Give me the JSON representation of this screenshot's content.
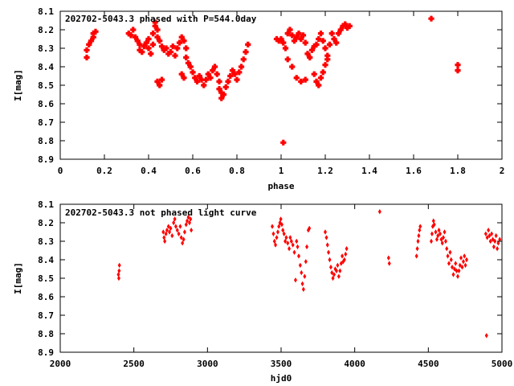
{
  "colors": {
    "points": "#ff0000",
    "axes": "#000000",
    "background": "#ffffff"
  },
  "chart_data": [
    {
      "type": "scatter",
      "title": "202702-5043.3 phased with P=544.0day",
      "xlabel": "phase",
      "ylabel": "I[mag]",
      "xlim": [
        0,
        2
      ],
      "ylim": [
        8.1,
        8.9
      ],
      "y_inverted": true,
      "grid": false,
      "xticks": [
        "0",
        "0.2",
        "0.4",
        "0.6",
        "0.8",
        "1",
        "1.2",
        "1.4",
        "1.6",
        "1.8",
        "2"
      ],
      "yticks": [
        "8.1",
        "8.2",
        "8.3",
        "8.4",
        "8.5",
        "8.6",
        "8.7",
        "8.8",
        "8.9"
      ],
      "marker": "cross",
      "points": [
        [
          0.12,
          8.31
        ],
        [
          0.12,
          8.35
        ],
        [
          0.13,
          8.28
        ],
        [
          0.14,
          8.26
        ],
        [
          0.15,
          8.24
        ],
        [
          0.15,
          8.22
        ],
        [
          0.16,
          8.21
        ],
        [
          0.31,
          8.22
        ],
        [
          0.32,
          8.23
        ],
        [
          0.33,
          8.2
        ],
        [
          0.34,
          8.24
        ],
        [
          0.35,
          8.26
        ],
        [
          0.36,
          8.28
        ],
        [
          0.36,
          8.31
        ],
        [
          0.37,
          8.32
        ],
        [
          0.38,
          8.29
        ],
        [
          0.39,
          8.27
        ],
        [
          0.4,
          8.3
        ],
        [
          0.4,
          8.25
        ],
        [
          0.41,
          8.33
        ],
        [
          0.42,
          8.28
        ],
        [
          0.42,
          8.22
        ],
        [
          0.43,
          8.18
        ],
        [
          0.43,
          8.16
        ],
        [
          0.44,
          8.2
        ],
        [
          0.44,
          8.24
        ],
        [
          0.45,
          8.26
        ],
        [
          0.46,
          8.29
        ],
        [
          0.47,
          8.31
        ],
        [
          0.48,
          8.3
        ],
        [
          0.49,
          8.33
        ],
        [
          0.5,
          8.32
        ],
        [
          0.51,
          8.29
        ],
        [
          0.52,
          8.34
        ],
        [
          0.53,
          8.3
        ],
        [
          0.54,
          8.27
        ],
        [
          0.55,
          8.24
        ],
        [
          0.56,
          8.26
        ],
        [
          0.57,
          8.3
        ],
        [
          0.57,
          8.35
        ],
        [
          0.58,
          8.38
        ],
        [
          0.59,
          8.4
        ],
        [
          0.6,
          8.43
        ],
        [
          0.61,
          8.46
        ],
        [
          0.62,
          8.48
        ],
        [
          0.63,
          8.45
        ],
        [
          0.64,
          8.47
        ],
        [
          0.65,
          8.5
        ],
        [
          0.66,
          8.47
        ],
        [
          0.67,
          8.44
        ],
        [
          0.68,
          8.46
        ],
        [
          0.69,
          8.42
        ],
        [
          0.7,
          8.4
        ],
        [
          0.71,
          8.44
        ],
        [
          0.72,
          8.48
        ],
        [
          0.72,
          8.52
        ],
        [
          0.73,
          8.54
        ],
        [
          0.73,
          8.57
        ],
        [
          0.74,
          8.55
        ],
        [
          0.75,
          8.51
        ],
        [
          0.76,
          8.48
        ],
        [
          0.77,
          8.45
        ],
        [
          0.78,
          8.42
        ],
        [
          0.79,
          8.44
        ],
        [
          0.8,
          8.47
        ],
        [
          0.81,
          8.43
        ],
        [
          0.82,
          8.4
        ],
        [
          0.83,
          8.36
        ],
        [
          0.84,
          8.32
        ],
        [
          0.85,
          8.28
        ],
        [
          0.44,
          8.48
        ],
        [
          0.45,
          8.5
        ],
        [
          0.46,
          8.47
        ],
        [
          0.55,
          8.44
        ],
        [
          0.56,
          8.46
        ],
        [
          0.98,
          8.25
        ],
        [
          0.99,
          8.26
        ],
        [
          1.0,
          8.25
        ],
        [
          1.01,
          8.27
        ],
        [
          1.01,
          8.81
        ],
        [
          1.02,
          8.3
        ],
        [
          1.03,
          8.22
        ],
        [
          1.04,
          8.2
        ],
        [
          1.05,
          8.23
        ],
        [
          1.06,
          8.26
        ],
        [
          1.07,
          8.24
        ],
        [
          1.08,
          8.22
        ],
        [
          1.09,
          8.25
        ],
        [
          1.1,
          8.23
        ],
        [
          1.11,
          8.27
        ],
        [
          1.12,
          8.33
        ],
        [
          1.13,
          8.35
        ],
        [
          1.14,
          8.31
        ],
        [
          1.15,
          8.29
        ],
        [
          1.16,
          8.28
        ],
        [
          1.17,
          8.25
        ],
        [
          1.18,
          8.22
        ],
        [
          1.19,
          8.26
        ],
        [
          1.2,
          8.3
        ],
        [
          1.21,
          8.34
        ],
        [
          1.22,
          8.28
        ],
        [
          1.23,
          8.22
        ],
        [
          1.24,
          8.25
        ],
        [
          1.25,
          8.27
        ],
        [
          1.26,
          8.22
        ],
        [
          1.27,
          8.2
        ],
        [
          1.28,
          8.18
        ],
        [
          1.29,
          8.17
        ],
        [
          1.3,
          8.19
        ],
        [
          1.31,
          8.18
        ],
        [
          1.03,
          8.36
        ],
        [
          1.05,
          8.4
        ],
        [
          1.07,
          8.46
        ],
        [
          1.09,
          8.48
        ],
        [
          1.11,
          8.47
        ],
        [
          1.15,
          8.44
        ],
        [
          1.16,
          8.48
        ],
        [
          1.17,
          8.5
        ],
        [
          1.18,
          8.46
        ],
        [
          1.19,
          8.43
        ],
        [
          1.2,
          8.39
        ],
        [
          1.21,
          8.36
        ],
        [
          1.68,
          8.14
        ],
        [
          1.8,
          8.39
        ],
        [
          1.8,
          8.42
        ]
      ]
    },
    {
      "type": "scatter",
      "title": "202702-5043.3 not phased light curve",
      "xlabel": "hjd0",
      "ylabel": "I[mag]",
      "xlim": [
        2000,
        5000
      ],
      "ylim": [
        8.1,
        8.9
      ],
      "y_inverted": true,
      "grid": false,
      "xticks": [
        "2000",
        "2500",
        "3000",
        "3500",
        "4000",
        "4500",
        "5000"
      ],
      "yticks": [
        "8.1",
        "8.2",
        "8.3",
        "8.4",
        "8.5",
        "8.6",
        "8.7",
        "8.8",
        "8.9"
      ],
      "marker": "diamond",
      "points": [
        [
          2395,
          8.48
        ],
        [
          2398,
          8.5
        ],
        [
          2400,
          8.46
        ],
        [
          2402,
          8.43
        ],
        [
          2700,
          8.25
        ],
        [
          2705,
          8.28
        ],
        [
          2710,
          8.3
        ],
        [
          2718,
          8.26
        ],
        [
          2725,
          8.24
        ],
        [
          2735,
          8.22
        ],
        [
          2742,
          8.25
        ],
        [
          2750,
          8.23
        ],
        [
          2760,
          8.27
        ],
        [
          2770,
          8.2
        ],
        [
          2778,
          8.18
        ],
        [
          2785,
          8.22
        ],
        [
          2795,
          8.24
        ],
        [
          2805,
          8.26
        ],
        [
          2815,
          8.22
        ],
        [
          2822,
          8.28
        ],
        [
          2830,
          8.31
        ],
        [
          2838,
          8.29
        ],
        [
          2845,
          8.25
        ],
        [
          2855,
          8.21
        ],
        [
          2862,
          8.19
        ],
        [
          2870,
          8.17
        ],
        [
          2878,
          8.2
        ],
        [
          2885,
          8.18
        ],
        [
          2890,
          8.24
        ],
        [
          3440,
          8.22
        ],
        [
          3448,
          8.26
        ],
        [
          3455,
          8.3
        ],
        [
          3462,
          8.32
        ],
        [
          3470,
          8.28
        ],
        [
          3478,
          8.25
        ],
        [
          3485,
          8.22
        ],
        [
          3492,
          8.2
        ],
        [
          3498,
          8.18
        ],
        [
          3505,
          8.21
        ],
        [
          3512,
          8.24
        ],
        [
          3520,
          8.26
        ],
        [
          3528,
          8.3
        ],
        [
          3535,
          8.28
        ],
        [
          3545,
          8.31
        ],
        [
          3555,
          8.34
        ],
        [
          3562,
          8.28
        ],
        [
          3570,
          8.3
        ],
        [
          3580,
          8.32
        ],
        [
          3590,
          8.36
        ],
        [
          3598,
          8.51
        ],
        [
          3605,
          8.3
        ],
        [
          3612,
          8.33
        ],
        [
          3620,
          8.38
        ],
        [
          3630,
          8.43
        ],
        [
          3638,
          8.47
        ],
        [
          3645,
          8.53
        ],
        [
          3652,
          8.56
        ],
        [
          3660,
          8.49
        ],
        [
          3668,
          8.41
        ],
        [
          3675,
          8.33
        ],
        [
          3685,
          8.24
        ],
        [
          3692,
          8.23
        ],
        [
          3800,
          8.25
        ],
        [
          3808,
          8.28
        ],
        [
          3815,
          8.32
        ],
        [
          3822,
          8.36
        ],
        [
          3830,
          8.4
        ],
        [
          3838,
          8.44
        ],
        [
          3845,
          8.47
        ],
        [
          3852,
          8.5
        ],
        [
          3860,
          8.48
        ],
        [
          3868,
          8.45
        ],
        [
          3876,
          8.46
        ],
        [
          3884,
          8.43
        ],
        [
          3892,
          8.49
        ],
        [
          3900,
          8.46
        ],
        [
          3908,
          8.42
        ],
        [
          3915,
          8.38
        ],
        [
          3922,
          8.41
        ],
        [
          3930,
          8.4
        ],
        [
          3938,
          8.37
        ],
        [
          3945,
          8.34
        ],
        [
          4170,
          8.14
        ],
        [
          4230,
          8.39
        ],
        [
          4235,
          8.42
        ],
        [
          4420,
          8.38
        ],
        [
          4425,
          8.34
        ],
        [
          4430,
          8.3
        ],
        [
          4435,
          8.27
        ],
        [
          4440,
          8.24
        ],
        [
          4445,
          8.22
        ],
        [
          4520,
          8.3
        ],
        [
          4525,
          8.26
        ],
        [
          4530,
          8.22
        ],
        [
          4535,
          8.19
        ],
        [
          4540,
          8.21
        ],
        [
          4550,
          8.25
        ],
        [
          4558,
          8.29
        ],
        [
          4565,
          8.27
        ],
        [
          4572,
          8.24
        ],
        [
          4580,
          8.26
        ],
        [
          4588,
          8.29
        ],
        [
          4595,
          8.31
        ],
        [
          4602,
          8.28
        ],
        [
          4610,
          8.25
        ],
        [
          4618,
          8.3
        ],
        [
          4625,
          8.34
        ],
        [
          4632,
          8.38
        ],
        [
          4640,
          8.42
        ],
        [
          4648,
          8.36
        ],
        [
          4655,
          8.4
        ],
        [
          4662,
          8.44
        ],
        [
          4670,
          8.48
        ],
        [
          4678,
          8.45
        ],
        [
          4685,
          8.42
        ],
        [
          4692,
          8.46
        ],
        [
          4700,
          8.49
        ],
        [
          4708,
          8.46
        ],
        [
          4715,
          8.43
        ],
        [
          4722,
          8.39
        ],
        [
          4730,
          8.44
        ],
        [
          4738,
          8.41
        ],
        [
          4745,
          8.38
        ],
        [
          4752,
          8.43
        ],
        [
          4760,
          8.4
        ],
        [
          4890,
          8.26
        ],
        [
          4895,
          8.81
        ],
        [
          4900,
          8.28
        ],
        [
          4908,
          8.24
        ],
        [
          4915,
          8.27
        ],
        [
          4922,
          8.3
        ],
        [
          4930,
          8.26
        ],
        [
          4938,
          8.29
        ],
        [
          4945,
          8.33
        ],
        [
          4952,
          8.3
        ],
        [
          4960,
          8.27
        ],
        [
          4968,
          8.34
        ],
        [
          4975,
          8.31
        ],
        [
          4985,
          8.29
        ]
      ]
    }
  ]
}
